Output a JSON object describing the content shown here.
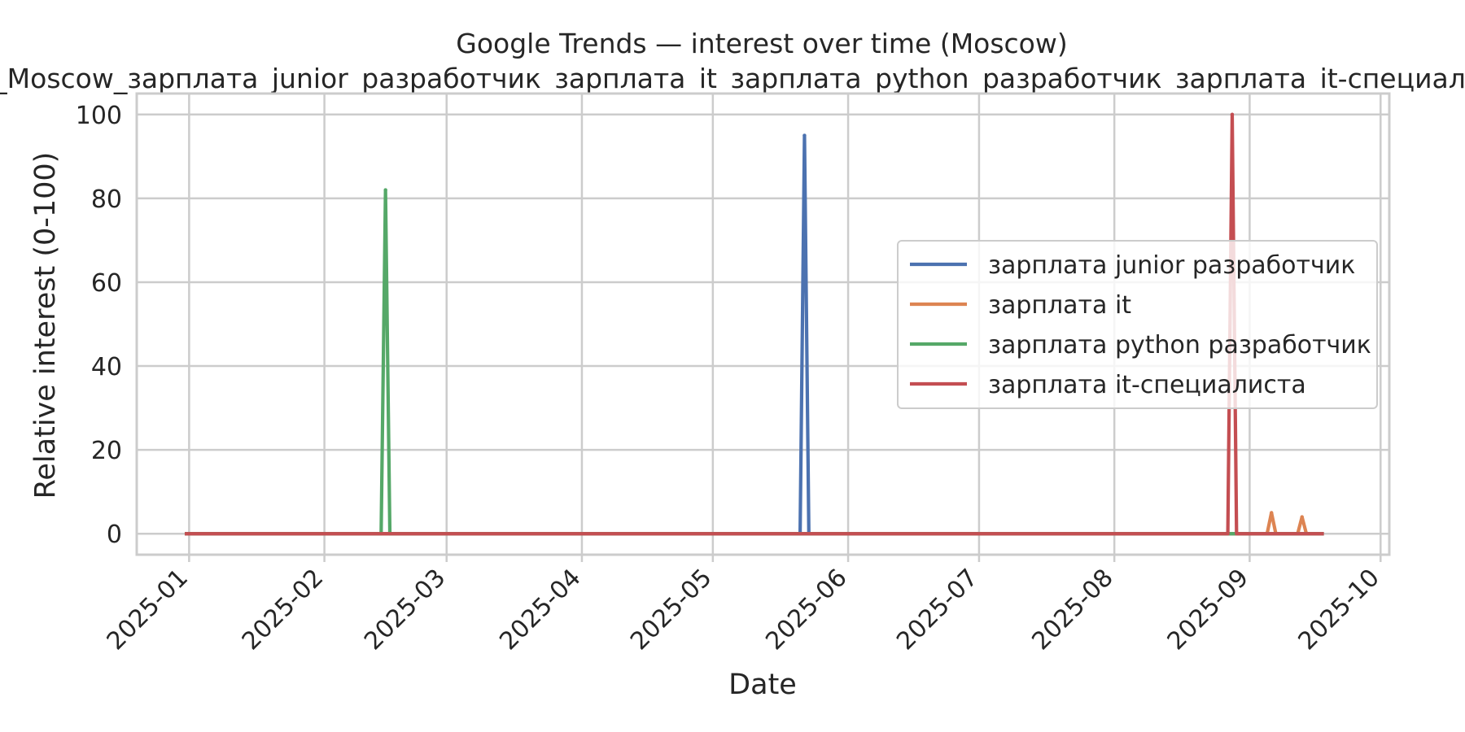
{
  "chart_data": {
    "type": "line",
    "title": "Google Trends — interest over time (Moscow)",
    "subtitle": "_Moscow_зарплата_junior_разработчик_зарплата_it_зарплата_python_разработчик_зарплата_it-специалиста",
    "xlabel": "Date",
    "ylabel": "Relative interest (0-100)",
    "x_ticks": [
      "2025-01",
      "2025-02",
      "2025-03",
      "2025-04",
      "2025-05",
      "2025-06",
      "2025-07",
      "2025-08",
      "2025-09",
      "2025-10"
    ],
    "y_ticks": [
      0,
      20,
      40,
      60,
      80,
      100
    ],
    "xlim": [
      "2024-12-20",
      "2025-10-03"
    ],
    "ylim": [
      -5,
      105
    ],
    "grid": true,
    "legend_position": "center-right",
    "x_range": [
      "2024-12-31",
      "2025-09-18"
    ],
    "series": [
      {
        "name": "зарплата junior разработчик",
        "color": "#4c72b0",
        "points": [
          [
            "2025-05-21",
            0
          ],
          [
            "2025-05-22",
            95
          ],
          [
            "2025-05-23",
            0
          ]
        ]
      },
      {
        "name": "зарплата it",
        "color": "#dd8452",
        "points": [
          [
            "2025-09-05",
            0
          ],
          [
            "2025-09-06",
            5
          ],
          [
            "2025-09-07",
            0
          ],
          [
            "2025-09-12",
            0
          ],
          [
            "2025-09-13",
            4
          ],
          [
            "2025-09-14",
            0
          ]
        ]
      },
      {
        "name": "зарплата python разработчик",
        "color": "#55a868",
        "points": [
          [
            "2025-02-14",
            0
          ],
          [
            "2025-02-15",
            82
          ],
          [
            "2025-02-16",
            0
          ]
        ]
      },
      {
        "name": "зарплата it-специалиста",
        "color": "#c44e52",
        "points": [
          [
            "2025-08-27",
            0
          ],
          [
            "2025-08-28",
            100
          ],
          [
            "2025-08-29",
            0
          ]
        ]
      }
    ]
  }
}
